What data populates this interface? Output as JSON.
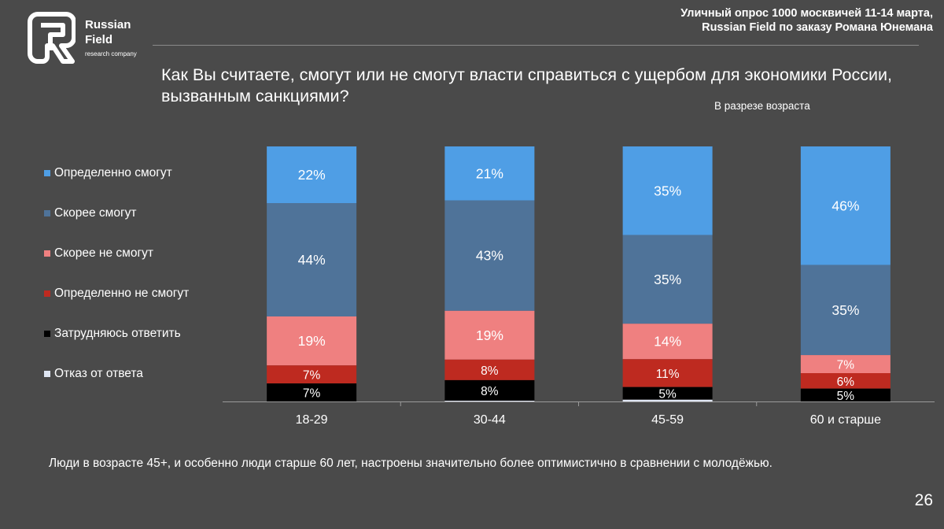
{
  "logo": {
    "name_line1": "Russian",
    "name_line2": "Field",
    "tagline": "research company"
  },
  "source": {
    "line1": "Уличный опрос 1000 москвичей 11-14 марта,",
    "line2": "Russian Field по заказу Романа Юнемана"
  },
  "footnote": "Люди в возрасте 45+, и особенно люди старше 60 лет, настроены значительно более оптимистично в сравнении с молодёжью.",
  "page_number": "26",
  "colors": {
    "background": "#4a4a4a",
    "definitely_can": "#4f9ee5",
    "rather_can": "#4f7399",
    "rather_cannot": "#ef8080",
    "definitely_cannot": "#be2a20",
    "hard_to_say": "#000000",
    "refusal": "#dfe6f3"
  },
  "chart_data": {
    "type": "bar",
    "stacked": true,
    "title": "Как Вы считаете, смогут или не смогут власти справиться с ущербом для экономики России, вызванным санкциями?",
    "subtitle": "В разрезе возраста",
    "categories": [
      "18-29",
      "30-44",
      "45-59",
      "60 и старше"
    ],
    "ylim": [
      0,
      100
    ],
    "grid": false,
    "legend_position": "left",
    "series": [
      {
        "name": "Определенно смогут",
        "color": "#4f9ee5",
        "values": [
          22,
          21,
          35,
          46
        ],
        "labels": [
          "22%",
          "21%",
          "35%",
          "46%"
        ]
      },
      {
        "name": "Скорее смогут",
        "color": "#4f7399",
        "values": [
          44,
          43,
          35,
          35
        ],
        "labels": [
          "44%",
          "43%",
          "35%",
          "35%"
        ]
      },
      {
        "name": "Скорее не смогут",
        "color": "#ef8080",
        "values": [
          19,
          19,
          14,
          7
        ],
        "labels": [
          "19%",
          "19%",
          "14%",
          "7%"
        ]
      },
      {
        "name": "Определенно не смогут",
        "color": "#be2a20",
        "values": [
          7,
          8,
          11,
          6
        ],
        "labels": [
          "7%",
          "8%",
          "11%",
          "6%"
        ]
      },
      {
        "name": "Затрудняюсь ответить",
        "color": "#000000",
        "values": [
          7,
          8,
          5,
          5
        ],
        "labels": [
          "7%",
          "8%",
          "5%",
          "5%"
        ]
      },
      {
        "name": "Отказ от ответа",
        "color": "#dfe6f3",
        "values": [
          0,
          0.3,
          0.7,
          0
        ],
        "labels": [
          "",
          "",
          "",
          ""
        ]
      }
    ]
  }
}
